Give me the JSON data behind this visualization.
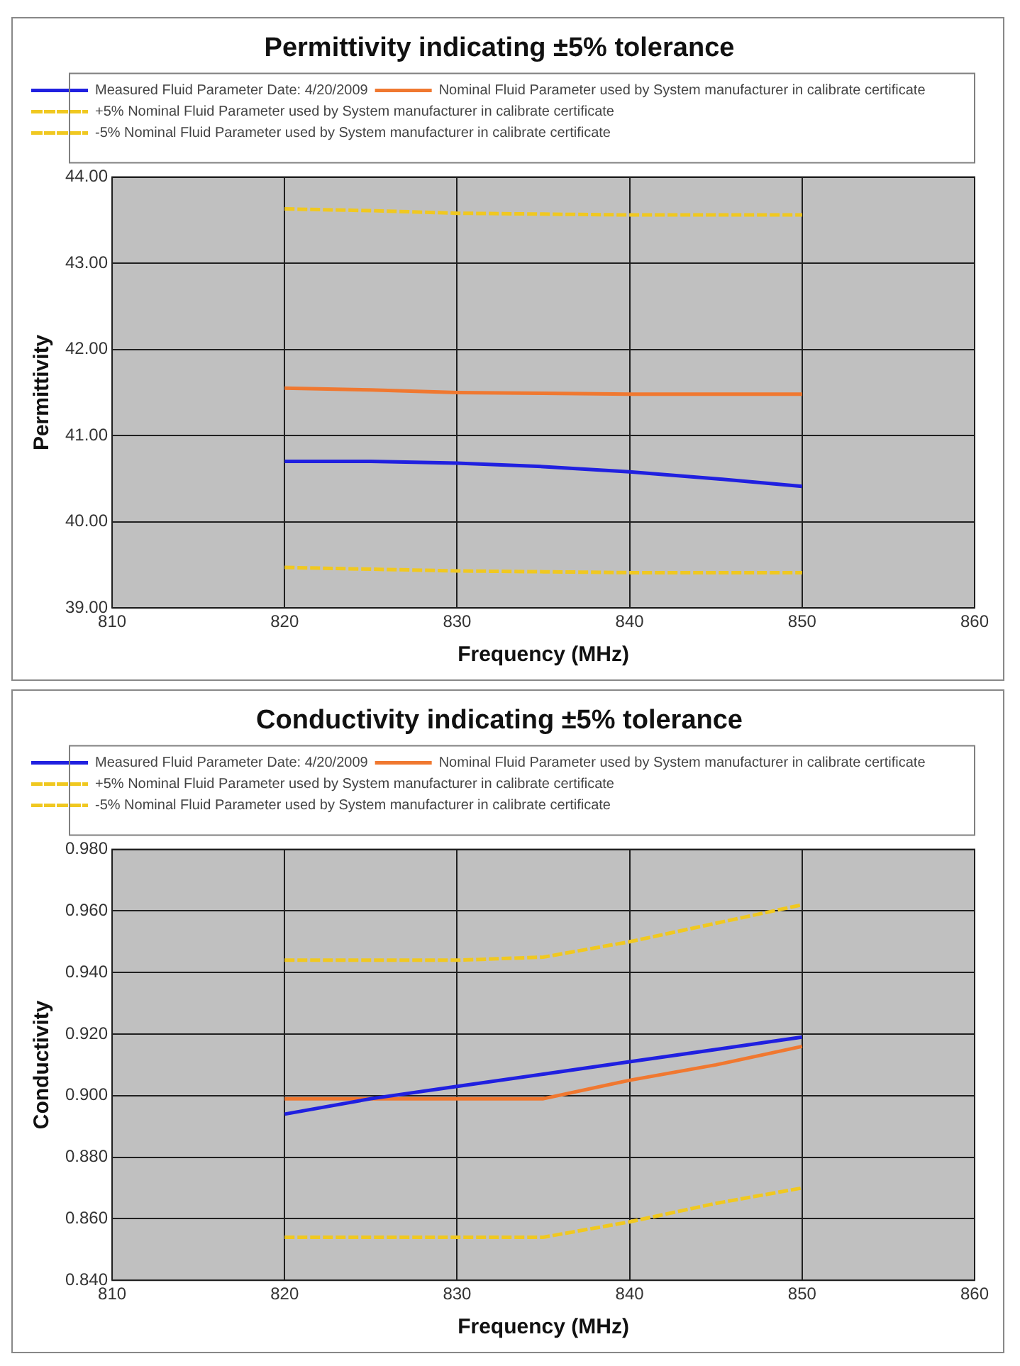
{
  "chart_data": [
    {
      "type": "line",
      "title": "Permittivity indicating ±5% tolerance",
      "xlabel": "Frequency (MHz)",
      "ylabel": "Permittivity",
      "x": [
        820,
        825,
        830,
        835,
        840,
        845,
        850
      ],
      "xlim": [
        810,
        860
      ],
      "xticks": [
        810,
        820,
        830,
        840,
        850,
        860
      ],
      "ylim": [
        39,
        44
      ],
      "yticks": [
        {
          "value": 39,
          "label": "39.00"
        },
        {
          "value": 40,
          "label": "40.00"
        },
        {
          "value": 41,
          "label": "41.00"
        },
        {
          "value": 42,
          "label": "42.00"
        },
        {
          "value": 43,
          "label": "43.00"
        },
        {
          "value": 44,
          "label": "44.00"
        }
      ],
      "grid": true,
      "legend": "top",
      "marker": "none",
      "series": [
        {
          "name": "Measured Fluid Parameter Date: 4/20/2009",
          "color": "#2020e0",
          "line_style": "solid",
          "values": [
            40.7,
            40.7,
            40.68,
            40.64,
            40.58,
            40.5,
            40.41
          ]
        },
        {
          "name": "Nominal Fluid Parameter used by System manufacturer in calibrate certificate",
          "color": "#f07830",
          "line_style": "solid",
          "values": [
            41.55,
            41.53,
            41.5,
            41.49,
            41.48,
            41.48,
            41.48
          ]
        },
        {
          "name": "+5% Nominal Fluid Parameter used by System manufacturer in calibrate certificate",
          "color": "#f0c820",
          "line_style": "dashed",
          "values": [
            43.63,
            43.61,
            43.58,
            43.57,
            43.56,
            43.56,
            43.56
          ]
        },
        {
          "name": "-5% Nominal Fluid Parameter used by System manufacturer in calibrate certificate",
          "color": "#f0c820",
          "line_style": "dashed",
          "values": [
            39.47,
            39.45,
            39.43,
            39.42,
            39.41,
            39.41,
            39.41
          ]
        }
      ]
    },
    {
      "type": "line",
      "title": "Conductivity indicating ±5% tolerance",
      "xlabel": "Frequency (MHz)",
      "ylabel": "Conductivity",
      "x": [
        820,
        825,
        830,
        835,
        840,
        845,
        850
      ],
      "xlim": [
        810,
        860
      ],
      "xticks": [
        810,
        820,
        830,
        840,
        850,
        860
      ],
      "ylim": [
        0.84,
        0.98
      ],
      "yticks": [
        {
          "value": 0.84,
          "label": "0.840"
        },
        {
          "value": 0.86,
          "label": "0.860"
        },
        {
          "value": 0.88,
          "label": "0.880"
        },
        {
          "value": 0.9,
          "label": "0.900"
        },
        {
          "value": 0.92,
          "label": "0.920"
        },
        {
          "value": 0.94,
          "label": "0.940"
        },
        {
          "value": 0.96,
          "label": "0.960"
        },
        {
          "value": 0.98,
          "label": "0.980"
        }
      ],
      "grid": true,
      "legend": "top",
      "marker": "none",
      "series": [
        {
          "name": "Measured Fluid Parameter Date: 4/20/2009",
          "color": "#2020e0",
          "line_style": "solid",
          "values": [
            0.894,
            0.899,
            0.903,
            0.907,
            0.911,
            0.915,
            0.919
          ]
        },
        {
          "name": "Nominal Fluid Parameter used by System manufacturer in calibrate certificate",
          "color": "#f07830",
          "line_style": "solid",
          "values": [
            0.899,
            0.899,
            0.899,
            0.899,
            0.905,
            0.91,
            0.916
          ]
        },
        {
          "name": "+5% Nominal Fluid Parameter used by System manufacturer in calibrate certificate",
          "color": "#f0c820",
          "line_style": "dashed",
          "values": [
            0.944,
            0.944,
            0.944,
            0.945,
            0.95,
            0.956,
            0.962
          ]
        },
        {
          "name": "-5% Nominal Fluid Parameter used by System manufacturer in calibrate certificate",
          "color": "#f0c820",
          "line_style": "dashed",
          "values": [
            0.854,
            0.854,
            0.854,
            0.854,
            0.859,
            0.865,
            0.87
          ]
        }
      ]
    }
  ]
}
